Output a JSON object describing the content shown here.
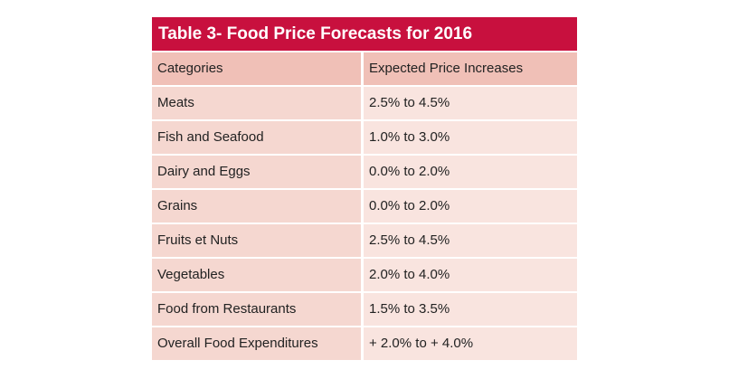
{
  "table": {
    "title": "Table 3- Food Price Forecasts for 2016",
    "headers": {
      "category": "Categories",
      "increase": "Expected Price Increases"
    },
    "rows": [
      {
        "category": "Meats",
        "increase": "2.5% to 4.5%"
      },
      {
        "category": "Fish and Seafood",
        "increase": "1.0% to 3.0%"
      },
      {
        "category": "Dairy and Eggs",
        "increase": "0.0% to 2.0%"
      },
      {
        "category": "Grains",
        "increase": "0.0% to 2.0%"
      },
      {
        "category": "Fruits et Nuts",
        "increase": "2.5% to 4.5%"
      },
      {
        "category": "Vegetables",
        "increase": "2.0% to 4.0%"
      },
      {
        "category": "Food from Restaurants",
        "increase": "1.5% to 3.5%"
      },
      {
        "category": "Overall Food Expenditures",
        "increase": "+ 2.0% to + 4.0%"
      }
    ],
    "colors": {
      "title_bg": "#c8103e",
      "header_bg": "#f0c0b7",
      "row_category_bg": "#f5d7d0",
      "row_value_bg": "#f9e4df"
    }
  }
}
